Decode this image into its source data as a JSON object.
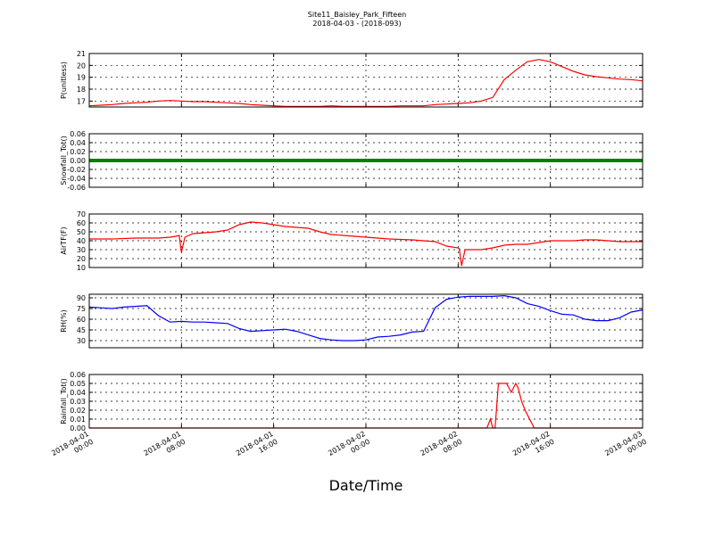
{
  "header": {
    "title_line1": "Site11_Baisley_Park_Fifteen",
    "title_line2": "2018-04-03 - (2018-093)"
  },
  "xaxis": {
    "label": "Date/Time",
    "tick_labels": [
      [
        "2018-04-01",
        "00:00"
      ],
      [
        "2018-04-01",
        "08:00"
      ],
      [
        "2018-04-01",
        "16:00"
      ],
      [
        "2018-04-02",
        "00:00"
      ],
      [
        "2018-04-02",
        "08:00"
      ],
      [
        "2018-04-02",
        "16:00"
      ],
      [
        "2018-04-03",
        "00:00"
      ]
    ]
  },
  "chart_data": [
    {
      "type": "line",
      "ylabel": "P(unitless)",
      "color": "#ff0000",
      "ylim": [
        16.5,
        21
      ],
      "yticks": [
        17,
        18,
        19,
        20,
        21
      ],
      "xlim": [
        0,
        48
      ],
      "x": [
        0,
        1,
        2,
        3,
        4,
        5,
        6,
        7,
        8,
        9,
        10,
        11,
        12,
        13,
        14,
        15,
        16,
        17,
        18,
        19,
        20,
        21,
        22,
        23,
        24,
        25,
        26,
        27,
        28,
        29,
        30,
        31,
        32,
        33,
        34,
        35,
        36,
        37,
        38,
        39,
        40,
        41,
        42,
        43,
        44,
        45,
        46,
        47,
        48
      ],
      "y": [
        16.6,
        16.65,
        16.7,
        16.8,
        16.85,
        16.9,
        17.0,
        17.05,
        17.0,
        16.95,
        16.95,
        16.9,
        16.85,
        16.8,
        16.7,
        16.65,
        16.6,
        16.55,
        16.55,
        16.55,
        16.55,
        16.6,
        16.55,
        16.55,
        16.55,
        16.55,
        16.55,
        16.6,
        16.6,
        16.6,
        16.7,
        16.75,
        16.8,
        16.85,
        17.0,
        17.3,
        18.8,
        19.6,
        20.3,
        20.5,
        20.3,
        19.9,
        19.5,
        19.2,
        19.05,
        18.95,
        18.85,
        18.8,
        18.7
      ]
    },
    {
      "type": "line",
      "ylabel": "Snowfall_Tot()",
      "color": "#008000",
      "ylim": [
        -0.06,
        0.06
      ],
      "yticks": [
        -0.06,
        -0.04,
        -0.02,
        0.0,
        0.02,
        0.04,
        0.06
      ],
      "xlim": [
        0,
        48
      ],
      "x": [
        0,
        48
      ],
      "y": [
        0.0,
        0.0
      ]
    },
    {
      "type": "line",
      "ylabel": "AirTF(F)",
      "color": "#ff0000",
      "ylim": [
        10,
        70
      ],
      "yticks": [
        10,
        20,
        30,
        40,
        50,
        60,
        70
      ],
      "xlim": [
        0,
        48
      ],
      "x": [
        0,
        2,
        4,
        6,
        7,
        7.5,
        7.8,
        8.0,
        8.3,
        9,
        10,
        11,
        12,
        13,
        14,
        15,
        16,
        17,
        18,
        19,
        20,
        21,
        22,
        24,
        26,
        28,
        29,
        30,
        31,
        32,
        32.1,
        32.3,
        32.6,
        33,
        34,
        35,
        36,
        37,
        38,
        39,
        40,
        41,
        42,
        43,
        44,
        46,
        48
      ],
      "y": [
        42,
        42,
        43,
        43,
        44,
        45,
        46,
        27,
        44,
        48,
        49,
        50,
        52,
        58,
        61,
        60,
        58,
        56,
        55,
        54,
        50,
        47,
        46,
        44,
        42,
        41,
        40,
        39,
        34,
        32,
        31,
        12,
        30,
        30,
        30,
        32,
        35,
        36,
        36,
        38,
        40,
        40,
        40,
        41,
        41,
        39,
        39
      ]
    },
    {
      "type": "line",
      "ylabel": "RH(%)",
      "color": "#0000ff",
      "ylim": [
        20,
        95
      ],
      "yticks": [
        30,
        45,
        60,
        75,
        90
      ],
      "xlim": [
        0,
        48
      ],
      "x": [
        0,
        1,
        2,
        3,
        4,
        5,
        6,
        7,
        8,
        9,
        10,
        11,
        12,
        13,
        14,
        15,
        16,
        17,
        18,
        19,
        20,
        21,
        22,
        23,
        24,
        25,
        26,
        27,
        28,
        29,
        30,
        31,
        32,
        33,
        34,
        35,
        36,
        37,
        38,
        39,
        40,
        41,
        42,
        43,
        44,
        45,
        46,
        47,
        48
      ],
      "y": [
        77,
        76,
        75,
        77,
        78,
        79,
        65,
        56,
        57,
        56,
        56,
        55,
        54,
        47,
        43,
        44,
        45,
        46,
        43,
        38,
        33,
        31,
        30,
        30,
        31,
        35,
        36,
        38,
        42,
        43,
        76,
        88,
        91,
        92,
        92,
        92,
        93,
        90,
        82,
        78,
        72,
        67,
        66,
        60,
        58,
        58,
        62,
        70,
        73
      ]
    },
    {
      "type": "line",
      "ylabel": "Rainfall_Tot()",
      "color": "#ff0000",
      "ylim": [
        0.0,
        0.06
      ],
      "yticks": [
        0.0,
        0.01,
        0.02,
        0.03,
        0.04,
        0.05,
        0.06
      ],
      "xlim": [
        0,
        48
      ],
      "x": [
        0,
        34.5,
        34.8,
        35.0,
        35.2,
        35.5,
        35.8,
        36.2,
        36.6,
        37.0,
        37.2,
        37.5,
        37.8,
        38.2,
        38.6,
        48
      ],
      "y": [
        0.0,
        0.0,
        0.01,
        0.0,
        0.0,
        0.05,
        0.05,
        0.05,
        0.04,
        0.05,
        0.045,
        0.03,
        0.02,
        0.01,
        0.0,
        0.0
      ]
    }
  ]
}
